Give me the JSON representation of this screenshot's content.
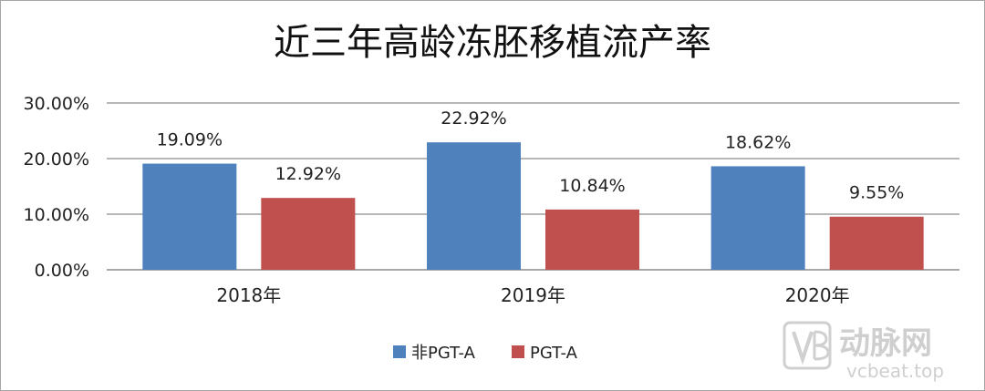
{
  "chart_data": {
    "type": "bar",
    "title": "近三年高龄冻胚移植流产率",
    "categories": [
      "2018年",
      "2019年",
      "2020年"
    ],
    "series": [
      {
        "name": "非PGT-A",
        "color": "#4f81bd",
        "values": [
          19.09,
          22.92,
          18.62
        ],
        "labels": [
          "19.09%",
          "22.92%",
          "18.62%"
        ]
      },
      {
        "name": "PGT-A",
        "color": "#c0504d",
        "values": [
          12.92,
          10.84,
          9.55
        ],
        "labels": [
          "12.92%",
          "10.84%",
          "9.55%"
        ]
      }
    ],
    "ylim": [
      0,
      30
    ],
    "yticks": [
      "0.00%",
      "10.00%",
      "20.00%",
      "30.00%"
    ],
    "ytick_values": [
      0,
      10,
      20,
      30
    ],
    "grid": true,
    "legend": "bottom"
  },
  "watermark": {
    "brand": "动脉网",
    "site": "vcbeat.top"
  }
}
